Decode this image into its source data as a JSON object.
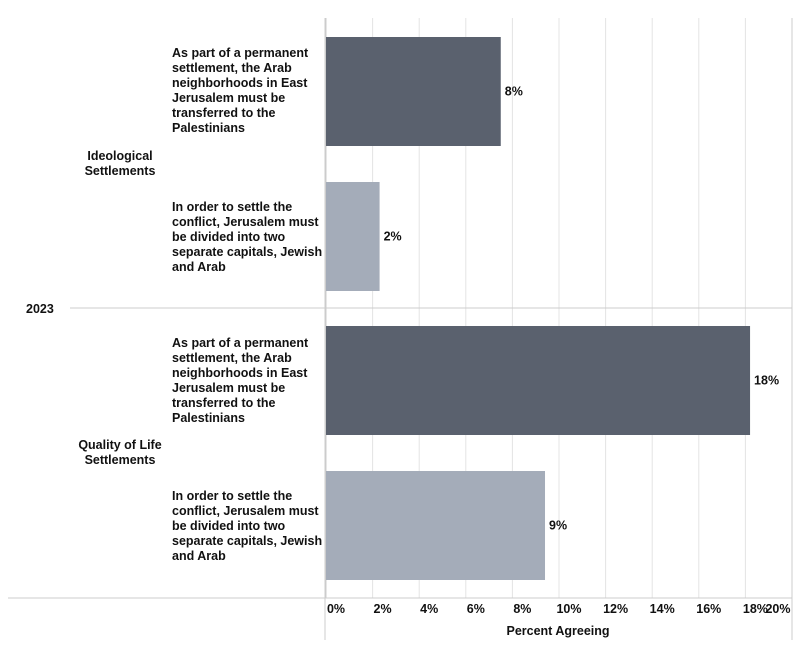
{
  "year_label": "2023",
  "groups": [
    {
      "label": "Ideological Settlements"
    },
    {
      "label": "Quality of Life Settlements"
    }
  ],
  "colors": {
    "dark_bar": "#5a616e",
    "light_bar": "#a4acb9",
    "grid": "#e4e4e4",
    "axis": "#cccccc"
  },
  "chart_data": {
    "type": "bar",
    "orientation": "horizontal",
    "xlabel": "Percent Agreeing",
    "xlim": [
      0,
      20
    ],
    "xticks": [
      "0%",
      "2%",
      "4%",
      "6%",
      "8%",
      "10%",
      "12%",
      "14%",
      "16%",
      "18%",
      "20%"
    ],
    "grid": true,
    "bars": [
      {
        "group": "Ideological Settlements",
        "label": "As part of a permanent settlement, the Arab neighborhoods in East Jerusalem must be transferred to the Palestinians",
        "value": 7.5,
        "data_label": "8%",
        "color": "#5a616e"
      },
      {
        "group": "Ideological Settlements",
        "label": "In order to settle the conflict, Jerusalem must be divided into two separate capitals, Jewish and Arab",
        "value": 2.3,
        "data_label": "2%",
        "color": "#a4acb9"
      },
      {
        "group": "Quality of Life Settlements",
        "label": "As part of a permanent settlement, the Arab neighborhoods in East Jerusalem must be transferred to the Palestinians",
        "value": 18.2,
        "data_label": "18%",
        "color": "#5a616e"
      },
      {
        "group": "Quality of Life Settlements",
        "label": "In order to settle the conflict, Jerusalem must be divided into two separate capitals, Jewish and Arab",
        "value": 9.4,
        "data_label": "9%",
        "color": "#a4acb9"
      }
    ]
  }
}
